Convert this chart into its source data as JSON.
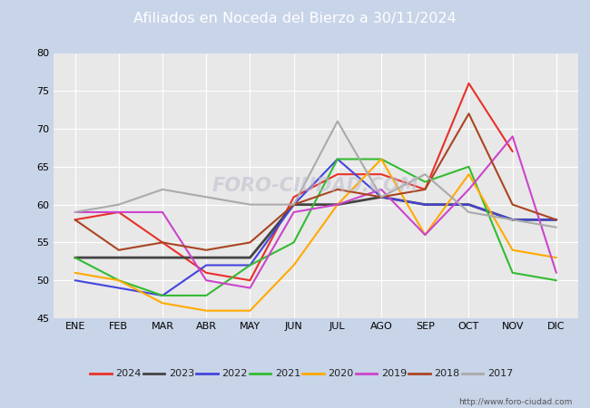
{
  "title": "Afiliados en Noceda del Bierzo a 30/11/2024",
  "background_color": "#c8d4e8",
  "plot_background": "#e8e8e8",
  "header_color": "#4472c4",
  "ylim": [
    45,
    80
  ],
  "yticks": [
    45,
    50,
    55,
    60,
    65,
    70,
    75,
    80
  ],
  "months": [
    "ENE",
    "FEB",
    "MAR",
    "ABR",
    "MAY",
    "JUN",
    "JUL",
    "AGO",
    "SEP",
    "OCT",
    "NOV",
    "DIC"
  ],
  "watermark": "FORO-CIUDAD.COM",
  "url": "http://www.foro-ciudad.com",
  "series": {
    "2024": {
      "color": "#e8302a",
      "linewidth": 1.5,
      "data": [
        58,
        59,
        55,
        51,
        50,
        61,
        64,
        64,
        62,
        76,
        67,
        null
      ]
    },
    "2023": {
      "color": "#444444",
      "linewidth": 2.0,
      "data": [
        53,
        53,
        53,
        53,
        53,
        60,
        60,
        61,
        60,
        60,
        58,
        58
      ]
    },
    "2022": {
      "color": "#4444dd",
      "linewidth": 1.5,
      "data": [
        50,
        49,
        48,
        52,
        52,
        60,
        66,
        61,
        60,
        60,
        58,
        58
      ]
    },
    "2021": {
      "color": "#33bb33",
      "linewidth": 1.5,
      "data": [
        53,
        50,
        48,
        48,
        52,
        55,
        66,
        66,
        63,
        65,
        51,
        50
      ]
    },
    "2020": {
      "color": "#ffaa00",
      "linewidth": 1.5,
      "data": [
        51,
        50,
        47,
        46,
        46,
        52,
        60,
        66,
        56,
        64,
        54,
        53
      ]
    },
    "2019": {
      "color": "#cc44cc",
      "linewidth": 1.5,
      "data": [
        59,
        59,
        59,
        50,
        49,
        59,
        60,
        62,
        56,
        62,
        69,
        51
      ]
    },
    "2018": {
      "color": "#aa4422",
      "linewidth": 1.5,
      "data": [
        58,
        54,
        55,
        54,
        55,
        60,
        62,
        61,
        62,
        72,
        60,
        58
      ]
    },
    "2017": {
      "color": "#aaaaaa",
      "linewidth": 1.5,
      "data": [
        59,
        60,
        62,
        61,
        60,
        60,
        71,
        61,
        64,
        59,
        58,
        57
      ]
    }
  },
  "legend_order": [
    "2024",
    "2023",
    "2022",
    "2021",
    "2020",
    "2019",
    "2018",
    "2017"
  ]
}
